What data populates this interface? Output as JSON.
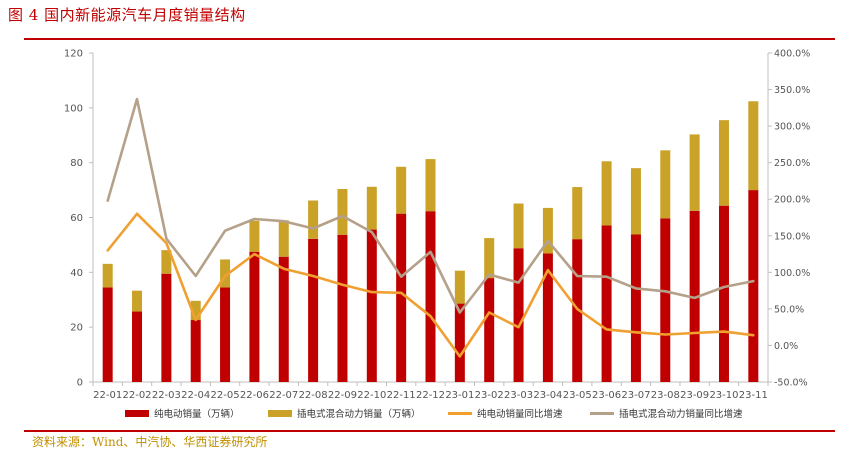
{
  "header": {
    "title": "图 4 国内新能源汽车月度销量结构"
  },
  "footer": {
    "source": "资料来源：Wind、中汽协、华西证券研究所"
  },
  "colors": {
    "bev": "#c00000",
    "phev": "#c9a227",
    "bev_yoy": "#f0a030",
    "phev_yoy": "#b5a08a",
    "rule": "#c00000"
  },
  "chart_data": {
    "type": "bar",
    "stacked": true,
    "categories": [
      "22-01",
      "22-02",
      "22-03",
      "22-04",
      "22-05",
      "22-06",
      "22-07",
      "22-08",
      "22-09",
      "22-10",
      "22-11",
      "22-12",
      "23-01",
      "23-02",
      "23-03",
      "23-04",
      "23-05",
      "23-06",
      "23-07",
      "23-08",
      "23-09",
      "23-10",
      "23-11"
    ],
    "series": [
      {
        "name": "纯电动销量（万辆）",
        "type": "bar",
        "axis": "left",
        "values": [
          34.5,
          25.7,
          39.5,
          22.6,
          34.5,
          47.5,
          45.7,
          52.2,
          53.7,
          55.6,
          61.4,
          62.3,
          28.6,
          37.9,
          48.8,
          46.9,
          52.1,
          57.1,
          53.8,
          59.7,
          62.4,
          64.3,
          70.0
        ]
      },
      {
        "name": "插电式混合动力销量（万辆）",
        "type": "bar",
        "axis": "left",
        "values": [
          8.6,
          7.6,
          8.6,
          7.0,
          10.2,
          11.3,
          13.3,
          14.0,
          16.7,
          15.6,
          17.1,
          19.0,
          12.0,
          14.6,
          16.3,
          16.6,
          19.0,
          23.4,
          24.2,
          24.8,
          27.9,
          31.2,
          32.4
        ]
      },
      {
        "name": "纯电动销量同比增速",
        "type": "line",
        "axis": "right",
        "values": [
          130,
          180,
          140,
          35,
          95,
          125,
          105,
          95,
          83,
          73,
          72,
          40,
          -15,
          45,
          25,
          103,
          50,
          22,
          18,
          15,
          17,
          19,
          14
        ]
      },
      {
        "name": "插电式混合动力销量同比增速",
        "type": "line",
        "axis": "right",
        "values": [
          198,
          337,
          146,
          95,
          157,
          173,
          170,
          160,
          177,
          155,
          94,
          128,
          45,
          97,
          86,
          143,
          95,
          94,
          78,
          74,
          65,
          80,
          88
        ]
      }
    ],
    "y_left": {
      "ylim": [
        0,
        120
      ],
      "ticks": [
        "0",
        "20",
        "40",
        "60",
        "80",
        "100",
        "120"
      ]
    },
    "y_right": {
      "ylim": [
        -50,
        400
      ],
      "ticks": [
        "-50.0%",
        "0.0%",
        "50.0%",
        "100.0%",
        "150.0%",
        "200.0%",
        "250.0%",
        "300.0%",
        "350.0%",
        "400.0%"
      ]
    },
    "grid": false,
    "legend_position": "bottom"
  }
}
